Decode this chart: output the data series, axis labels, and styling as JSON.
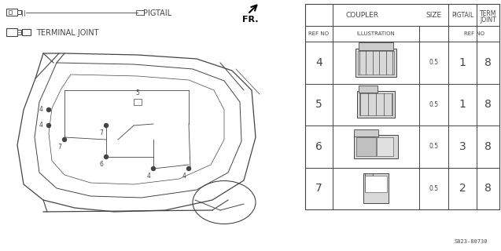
{
  "bg_color": "#ffffff",
  "line_color": "#444444",
  "part_code": "S023-80730",
  "pigtail_label": "PIGTAIL",
  "terminal_label": "TERMINAL JOINT",
  "fr_label": "FR.",
  "table": {
    "rows": [
      {
        "ref": "4",
        "size": "0.5",
        "pigtail": "1",
        "term": "8"
      },
      {
        "ref": "5",
        "size": "0.5",
        "pigtail": "1",
        "term": "8"
      },
      {
        "ref": "6",
        "size": "0.5",
        "pigtail": "3",
        "term": "8"
      },
      {
        "ref": "7",
        "size": "0.5",
        "pigtail": "2",
        "term": "8"
      }
    ]
  }
}
